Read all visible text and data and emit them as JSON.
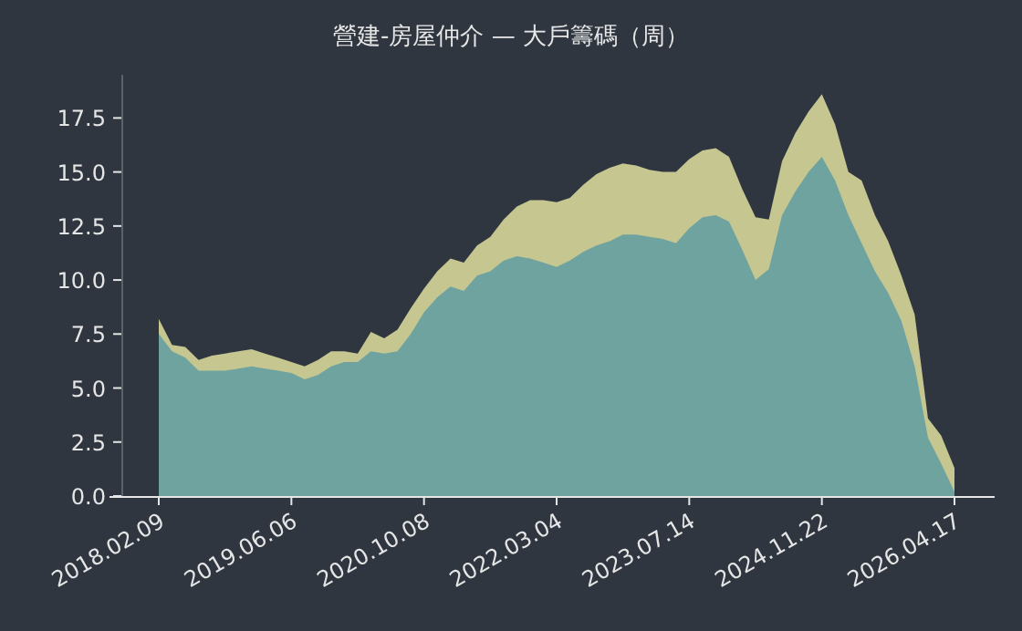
{
  "chart_data": {
    "type": "area",
    "title": "營建-房屋仲介 — 大戶籌碼（周）",
    "categories": [
      "2018.02.09",
      null,
      null,
      null,
      null,
      null,
      null,
      null,
      null,
      null,
      "2019.06.06",
      null,
      null,
      null,
      null,
      null,
      null,
      null,
      null,
      null,
      "2020.10.08",
      null,
      null,
      null,
      null,
      null,
      null,
      null,
      null,
      null,
      "2022.03.04",
      null,
      null,
      null,
      null,
      null,
      null,
      null,
      null,
      null,
      "2023.07.14",
      null,
      null,
      null,
      null,
      null,
      null,
      null,
      null,
      null,
      "2024.11.22",
      null,
      null,
      null,
      null,
      null,
      null,
      null,
      null,
      null,
      "2026.04.17"
    ],
    "series": [
      {
        "color": "#c5c690",
        "values": [
          8.2,
          7.0,
          6.9,
          6.3,
          6.5,
          6.6,
          6.7,
          6.8,
          6.6,
          6.4,
          6.2,
          6.0,
          6.3,
          6.7,
          6.7,
          6.6,
          7.6,
          7.3,
          7.7,
          8.7,
          9.6,
          10.4,
          11.0,
          10.8,
          11.6,
          12.0,
          12.8,
          13.4,
          13.7,
          13.7,
          13.6,
          13.8,
          14.4,
          14.9,
          15.2,
          15.4,
          15.3,
          15.1,
          15.0,
          15.0,
          15.6,
          16.0,
          16.1,
          15.7,
          14.2,
          12.9,
          12.8,
          15.5,
          16.8,
          17.8,
          18.6,
          17.2,
          15.0,
          14.6,
          13.0,
          11.8,
          10.2,
          8.4,
          3.6,
          2.8,
          1.3
        ]
      },
      {
        "color": "#6fa39f",
        "values": [
          7.5,
          6.7,
          6.4,
          5.8,
          5.8,
          5.8,
          5.9,
          6.0,
          5.9,
          5.8,
          5.7,
          5.4,
          5.6,
          6.0,
          6.2,
          6.2,
          6.7,
          6.6,
          6.7,
          7.5,
          8.5,
          9.2,
          9.7,
          9.5,
          10.2,
          10.4,
          10.9,
          11.1,
          11.0,
          10.8,
          10.6,
          10.9,
          11.3,
          11.6,
          11.8,
          12.1,
          12.1,
          12.0,
          11.9,
          11.7,
          12.4,
          12.9,
          13.0,
          12.7,
          11.4,
          10.0,
          10.5,
          13.0,
          14.1,
          15.0,
          15.7,
          14.6,
          13.0,
          11.7,
          10.4,
          9.4,
          8.1,
          6.0,
          2.7,
          1.5,
          0.2
        ]
      }
    ],
    "ylim": [
      0,
      19.5
    ],
    "yticks": [
      {
        "value": 0,
        "label": "0.0"
      },
      2.5,
      {
        "value": 5,
        "label": "5.0"
      },
      7.5,
      {
        "value": 10,
        "label": "10.0"
      },
      12.5,
      {
        "value": 15,
        "label": "15.0"
      },
      17.5
    ]
  }
}
